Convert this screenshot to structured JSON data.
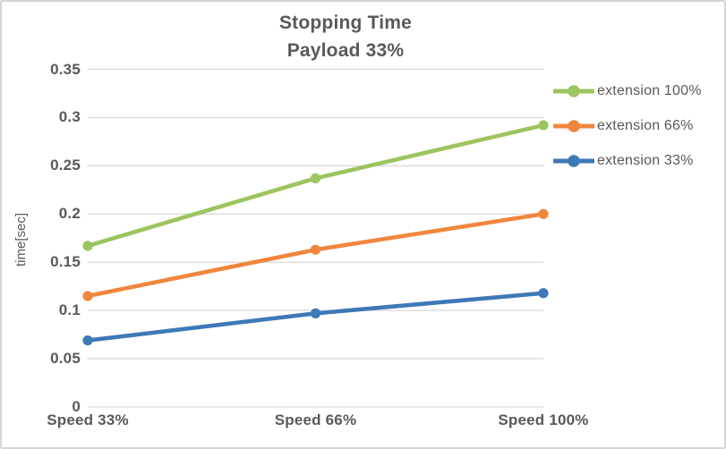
{
  "chart_data": {
    "type": "line",
    "title": "Stopping Time",
    "subtitle": "Payload 33%",
    "xlabel": "",
    "ylabel": "time[sec]",
    "categories": [
      "Speed 33%",
      "Speed 66%",
      "Speed 100%"
    ],
    "series": [
      {
        "name": "extension 100%",
        "color": "#9DC45F",
        "values": [
          0.167,
          0.237,
          0.292
        ]
      },
      {
        "name": "extension 66%",
        "color": "#F0863E",
        "values": [
          0.115,
          0.163,
          0.2
        ]
      },
      {
        "name": "extension 33%",
        "color": "#3E78B5",
        "values": [
          0.069,
          0.097,
          0.118
        ]
      }
    ],
    "ylim": [
      0,
      0.35
    ],
    "y_ticks": [
      0,
      0.05,
      0.1,
      0.15,
      0.2,
      0.25,
      0.3,
      0.35
    ],
    "y_tick_labels": [
      "0",
      "0.05",
      "0.1",
      "0.15",
      "0.2",
      "0.25",
      "0.3",
      "0.35"
    ],
    "grid": true,
    "legend_position": "right",
    "marker": "circle"
  },
  "colors": {
    "text": "#595959",
    "gridline": "#D9D9D9",
    "border": "#D6D4D4",
    "background": "#FFFFFF"
  }
}
